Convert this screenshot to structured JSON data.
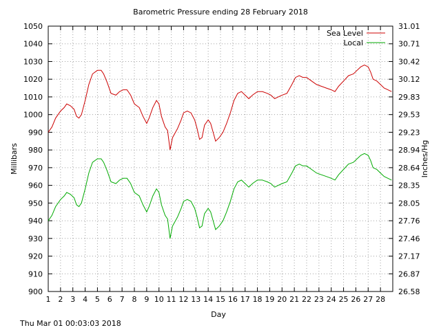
{
  "chart_data": {
    "type": "line",
    "title": "Barometric Pressure ending 28 February 2018",
    "xlabel": "Day",
    "ylabel": "Millibars",
    "y2label": "Inches/Hg",
    "xlim": [
      1,
      29
    ],
    "ylim": [
      900,
      1050
    ],
    "x_ticks": [
      "1",
      "2",
      "3",
      "4",
      "5",
      "6",
      "7",
      "8",
      "9",
      "10",
      "11",
      "12",
      "13",
      "14",
      "15",
      "16",
      "17",
      "18",
      "19",
      "20",
      "21",
      "22",
      "23",
      "24",
      "25",
      "26",
      "27",
      "28"
    ],
    "y_ticks": [
      "900",
      "910",
      "920",
      "930",
      "940",
      "950",
      "960",
      "970",
      "980",
      "990",
      "1000",
      "1010",
      "1020",
      "1030",
      "1040",
      "1050"
    ],
    "y2_ticks": [
      "26.58",
      "26.87",
      "27.17",
      "27.46",
      "27.76",
      "28.05",
      "28.35",
      "28.64",
      "28.94",
      "29.23",
      "29.53",
      "29.83",
      "30.12",
      "30.42",
      "30.71",
      "31.01"
    ],
    "grid": true,
    "legend_position": "top-right",
    "series": [
      {
        "name": "Sea Level",
        "color": "#cc0000",
        "points": [
          [
            1.0,
            990
          ],
          [
            1.3,
            993
          ],
          [
            1.6,
            998
          ],
          [
            2.0,
            1002
          ],
          [
            2.3,
            1004
          ],
          [
            2.5,
            1006
          ],
          [
            2.8,
            1005
          ],
          [
            3.1,
            1003
          ],
          [
            3.3,
            999
          ],
          [
            3.5,
            998
          ],
          [
            3.7,
            1000
          ],
          [
            4.0,
            1008
          ],
          [
            4.3,
            1017
          ],
          [
            4.6,
            1023
          ],
          [
            5.0,
            1025
          ],
          [
            5.3,
            1025
          ],
          [
            5.5,
            1023
          ],
          [
            5.8,
            1018
          ],
          [
            6.1,
            1012
          ],
          [
            6.5,
            1011
          ],
          [
            6.8,
            1013
          ],
          [
            7.1,
            1014
          ],
          [
            7.4,
            1014
          ],
          [
            7.7,
            1011
          ],
          [
            8.0,
            1006
          ],
          [
            8.4,
            1004
          ],
          [
            8.7,
            999
          ],
          [
            9.0,
            995
          ],
          [
            9.2,
            998
          ],
          [
            9.5,
            1004
          ],
          [
            9.8,
            1008
          ],
          [
            10.0,
            1006
          ],
          [
            10.2,
            999
          ],
          [
            10.5,
            993
          ],
          [
            10.7,
            991
          ],
          [
            10.9,
            980
          ],
          [
            11.1,
            987
          ],
          [
            11.5,
            992
          ],
          [
            11.8,
            997
          ],
          [
            12.0,
            1001
          ],
          [
            12.3,
            1002
          ],
          [
            12.6,
            1001
          ],
          [
            12.9,
            997
          ],
          [
            13.1,
            992
          ],
          [
            13.3,
            986
          ],
          [
            13.5,
            987
          ],
          [
            13.7,
            994
          ],
          [
            14.0,
            997
          ],
          [
            14.2,
            995
          ],
          [
            14.4,
            990
          ],
          [
            14.6,
            985
          ],
          [
            14.9,
            987
          ],
          [
            15.2,
            990
          ],
          [
            15.5,
            995
          ],
          [
            15.8,
            1001
          ],
          [
            16.1,
            1008
          ],
          [
            16.4,
            1012
          ],
          [
            16.7,
            1013
          ],
          [
            17.0,
            1011
          ],
          [
            17.3,
            1009
          ],
          [
            17.6,
            1011
          ],
          [
            18.0,
            1013
          ],
          [
            18.4,
            1013
          ],
          [
            18.8,
            1012
          ],
          [
            19.1,
            1011
          ],
          [
            19.4,
            1009
          ],
          [
            19.7,
            1010
          ],
          [
            20.0,
            1011
          ],
          [
            20.4,
            1012
          ],
          [
            20.8,
            1017
          ],
          [
            21.1,
            1021
          ],
          [
            21.4,
            1022
          ],
          [
            21.7,
            1021
          ],
          [
            22.0,
            1021
          ],
          [
            22.4,
            1019
          ],
          [
            22.8,
            1017
          ],
          [
            23.2,
            1016
          ],
          [
            23.6,
            1015
          ],
          [
            24.0,
            1014
          ],
          [
            24.3,
            1013
          ],
          [
            24.6,
            1016
          ],
          [
            25.0,
            1019
          ],
          [
            25.4,
            1022
          ],
          [
            25.8,
            1023
          ],
          [
            26.1,
            1025
          ],
          [
            26.4,
            1027
          ],
          [
            26.7,
            1028
          ],
          [
            27.0,
            1027
          ],
          [
            27.2,
            1024
          ],
          [
            27.4,
            1020
          ],
          [
            27.7,
            1019
          ],
          [
            28.0,
            1017
          ],
          [
            28.3,
            1015
          ],
          [
            28.6,
            1014
          ],
          [
            28.9,
            1013
          ]
        ]
      },
      {
        "name": "Local",
        "color": "#00aa00",
        "points": [
          [
            1.0,
            940
          ],
          [
            1.3,
            943
          ],
          [
            1.6,
            948
          ],
          [
            2.0,
            952
          ],
          [
            2.3,
            954
          ],
          [
            2.5,
            956
          ],
          [
            2.8,
            955
          ],
          [
            3.1,
            953
          ],
          [
            3.3,
            949
          ],
          [
            3.5,
            948
          ],
          [
            3.7,
            950
          ],
          [
            4.0,
            958
          ],
          [
            4.3,
            967
          ],
          [
            4.6,
            973
          ],
          [
            5.0,
            975
          ],
          [
            5.3,
            975
          ],
          [
            5.5,
            973
          ],
          [
            5.8,
            968
          ],
          [
            6.1,
            962
          ],
          [
            6.5,
            961
          ],
          [
            6.8,
            963
          ],
          [
            7.1,
            964
          ],
          [
            7.4,
            964
          ],
          [
            7.7,
            961
          ],
          [
            8.0,
            956
          ],
          [
            8.4,
            954
          ],
          [
            8.7,
            949
          ],
          [
            9.0,
            945
          ],
          [
            9.2,
            948
          ],
          [
            9.5,
            954
          ],
          [
            9.8,
            958
          ],
          [
            10.0,
            956
          ],
          [
            10.2,
            949
          ],
          [
            10.5,
            943
          ],
          [
            10.7,
            941
          ],
          [
            10.9,
            930
          ],
          [
            11.1,
            937
          ],
          [
            11.5,
            942
          ],
          [
            11.8,
            947
          ],
          [
            12.0,
            951
          ],
          [
            12.3,
            952
          ],
          [
            12.6,
            951
          ],
          [
            12.9,
            947
          ],
          [
            13.1,
            942
          ],
          [
            13.3,
            936
          ],
          [
            13.5,
            937
          ],
          [
            13.7,
            944
          ],
          [
            14.0,
            947
          ],
          [
            14.2,
            945
          ],
          [
            14.4,
            940
          ],
          [
            14.6,
            935
          ],
          [
            14.9,
            937
          ],
          [
            15.2,
            940
          ],
          [
            15.5,
            945
          ],
          [
            15.8,
            951
          ],
          [
            16.1,
            958
          ],
          [
            16.4,
            962
          ],
          [
            16.7,
            963
          ],
          [
            17.0,
            961
          ],
          [
            17.3,
            959
          ],
          [
            17.6,
            961
          ],
          [
            18.0,
            963
          ],
          [
            18.4,
            963
          ],
          [
            18.8,
            962
          ],
          [
            19.1,
            961
          ],
          [
            19.4,
            959
          ],
          [
            19.7,
            960
          ],
          [
            20.0,
            961
          ],
          [
            20.4,
            962
          ],
          [
            20.8,
            967
          ],
          [
            21.1,
            971
          ],
          [
            21.4,
            972
          ],
          [
            21.7,
            971
          ],
          [
            22.0,
            971
          ],
          [
            22.4,
            969
          ],
          [
            22.8,
            967
          ],
          [
            23.2,
            966
          ],
          [
            23.6,
            965
          ],
          [
            24.0,
            964
          ],
          [
            24.3,
            963
          ],
          [
            24.6,
            966
          ],
          [
            25.0,
            969
          ],
          [
            25.4,
            972
          ],
          [
            25.8,
            973
          ],
          [
            26.1,
            975
          ],
          [
            26.4,
            977
          ],
          [
            26.7,
            978
          ],
          [
            27.0,
            977
          ],
          [
            27.2,
            974
          ],
          [
            27.4,
            970
          ],
          [
            27.7,
            969
          ],
          [
            28.0,
            967
          ],
          [
            28.3,
            965
          ],
          [
            28.6,
            964
          ],
          [
            28.9,
            963
          ]
        ]
      }
    ]
  },
  "footer_timestamp": "Thu Mar 01 00:03:03 2018"
}
